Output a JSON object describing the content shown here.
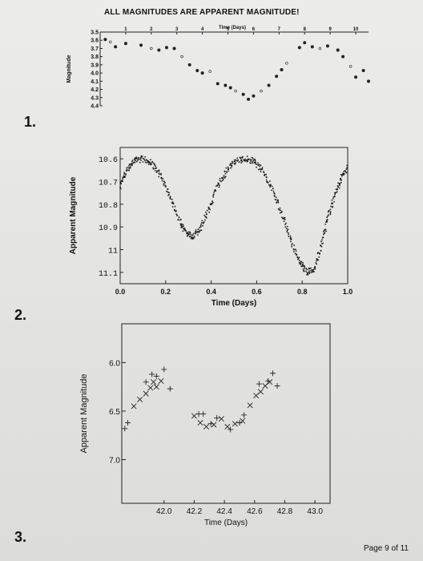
{
  "page": {
    "header": "ALL MAGNITUDES ARE APPARENT MAGNITUDE!",
    "question_numbers": [
      "1.",
      "2.",
      "3."
    ],
    "footer": "Page 9 of 11"
  },
  "chart_data": [
    {
      "type": "scatter",
      "title": "",
      "xlabel": "Time (Days)",
      "ylabel": "Magnitude",
      "x_ticks": [
        "1",
        "2",
        "3",
        "4",
        "5",
        "6",
        "7",
        "8",
        "9",
        "10"
      ],
      "y_ticks": [
        "3.5",
        "3.6",
        "3.7",
        "3.8",
        "3.9",
        "4.0",
        "4.1",
        "4.2",
        "4.3",
        "4.4"
      ],
      "xlim": [
        0,
        10.5
      ],
      "ylim": [
        3.5,
        4.4
      ],
      "y_inverted": true,
      "x_axis_position": "top",
      "points": [
        {
          "x": 0.2,
          "y": 3.59
        },
        {
          "x": 0.4,
          "y": 3.62
        },
        {
          "x": 0.6,
          "y": 3.68
        },
        {
          "x": 1.0,
          "y": 3.64
        },
        {
          "x": 1.6,
          "y": 3.66
        },
        {
          "x": 2.0,
          "y": 3.7
        },
        {
          "x": 2.3,
          "y": 3.72
        },
        {
          "x": 2.6,
          "y": 3.69
        },
        {
          "x": 2.9,
          "y": 3.7
        },
        {
          "x": 3.2,
          "y": 3.8
        },
        {
          "x": 3.5,
          "y": 3.9
        },
        {
          "x": 3.8,
          "y": 3.97
        },
        {
          "x": 4.0,
          "y": 4.0
        },
        {
          "x": 4.3,
          "y": 3.98
        },
        {
          "x": 4.6,
          "y": 4.13
        },
        {
          "x": 4.9,
          "y": 4.15
        },
        {
          "x": 5.1,
          "y": 4.18
        },
        {
          "x": 5.3,
          "y": 4.22
        },
        {
          "x": 5.6,
          "y": 4.26
        },
        {
          "x": 5.8,
          "y": 4.32
        },
        {
          "x": 6.0,
          "y": 4.28
        },
        {
          "x": 6.3,
          "y": 4.22
        },
        {
          "x": 6.6,
          "y": 4.15
        },
        {
          "x": 6.9,
          "y": 4.04
        },
        {
          "x": 7.1,
          "y": 3.96
        },
        {
          "x": 7.3,
          "y": 3.88
        },
        {
          "x": 7.8,
          "y": 3.69
        },
        {
          "x": 8.0,
          "y": 3.63
        },
        {
          "x": 8.3,
          "y": 3.68
        },
        {
          "x": 8.6,
          "y": 3.7
        },
        {
          "x": 8.9,
          "y": 3.67
        },
        {
          "x": 9.3,
          "y": 3.72
        },
        {
          "x": 9.5,
          "y": 3.8
        },
        {
          "x": 9.8,
          "y": 3.92
        },
        {
          "x": 10.0,
          "y": 4.05
        },
        {
          "x": 10.3,
          "y": 3.97
        },
        {
          "x": 10.5,
          "y": 4.1
        }
      ]
    },
    {
      "type": "scatter",
      "title": "",
      "xlabel": "Time (Days)",
      "ylabel": "Apparent Magnitude",
      "x_ticks": [
        "0.0",
        "0.2",
        "0.4",
        "0.6",
        "0.8",
        "1.0"
      ],
      "y_ticks": [
        "10.6",
        "10.7",
        "10.8",
        "10.9",
        "11",
        "11.1"
      ],
      "xlim": [
        0.0,
        1.0
      ],
      "ylim": [
        10.55,
        11.15
      ],
      "y_inverted": true,
      "density": "dense",
      "curve_points": [
        {
          "x": 0.0,
          "y": 10.72
        },
        {
          "x": 0.03,
          "y": 10.65
        },
        {
          "x": 0.06,
          "y": 10.61
        },
        {
          "x": 0.1,
          "y": 10.6
        },
        {
          "x": 0.14,
          "y": 10.62
        },
        {
          "x": 0.18,
          "y": 10.68
        },
        {
          "x": 0.22,
          "y": 10.77
        },
        {
          "x": 0.26,
          "y": 10.87
        },
        {
          "x": 0.29,
          "y": 10.93
        },
        {
          "x": 0.32,
          "y": 10.94
        },
        {
          "x": 0.35,
          "y": 10.91
        },
        {
          "x": 0.39,
          "y": 10.82
        },
        {
          "x": 0.43,
          "y": 10.72
        },
        {
          "x": 0.47,
          "y": 10.65
        },
        {
          "x": 0.51,
          "y": 10.61
        },
        {
          "x": 0.55,
          "y": 10.6
        },
        {
          "x": 0.59,
          "y": 10.61
        },
        {
          "x": 0.63,
          "y": 10.66
        },
        {
          "x": 0.67,
          "y": 10.74
        },
        {
          "x": 0.71,
          "y": 10.84
        },
        {
          "x": 0.75,
          "y": 10.96
        },
        {
          "x": 0.79,
          "y": 11.05
        },
        {
          "x": 0.82,
          "y": 11.1
        },
        {
          "x": 0.85,
          "y": 11.09
        },
        {
          "x": 0.88,
          "y": 11.0
        },
        {
          "x": 0.91,
          "y": 10.87
        },
        {
          "x": 0.94,
          "y": 10.77
        },
        {
          "x": 0.97,
          "y": 10.69
        },
        {
          "x": 1.0,
          "y": 10.64
        }
      ]
    },
    {
      "type": "scatter",
      "title": "",
      "xlabel": "Time (Days)",
      "ylabel": "Apparent Magnitude",
      "x_ticks": [
        "42.0",
        "42.2",
        "42.4",
        "42.6",
        "42.8",
        "43.0"
      ],
      "y_ticks": [
        "6.0",
        "6.5",
        "7.0"
      ],
      "xlim": [
        41.72,
        43.1
      ],
      "ylim": [
        5.6,
        7.45
      ],
      "y_inverted": true,
      "markers": [
        "x",
        "+"
      ],
      "points_x": [
        {
          "x": 41.8,
          "y": 6.45
        },
        {
          "x": 41.84,
          "y": 6.38
        },
        {
          "x": 41.88,
          "y": 6.32
        },
        {
          "x": 41.91,
          "y": 6.26
        },
        {
          "x": 41.93,
          "y": 6.2
        },
        {
          "x": 41.95,
          "y": 6.25
        },
        {
          "x": 41.98,
          "y": 6.19
        },
        {
          "x": 42.2,
          "y": 6.55
        },
        {
          "x": 42.24,
          "y": 6.62
        },
        {
          "x": 42.28,
          "y": 6.66
        },
        {
          "x": 42.33,
          "y": 6.64
        },
        {
          "x": 42.38,
          "y": 6.58
        },
        {
          "x": 42.42,
          "y": 6.66
        },
        {
          "x": 42.47,
          "y": 6.63
        },
        {
          "x": 42.52,
          "y": 6.6
        },
        {
          "x": 42.57,
          "y": 6.44
        },
        {
          "x": 42.61,
          "y": 6.34
        },
        {
          "x": 42.64,
          "y": 6.3
        },
        {
          "x": 42.67,
          "y": 6.24
        },
        {
          "x": 42.7,
          "y": 6.2
        }
      ],
      "points_plus": [
        {
          "x": 41.74,
          "y": 6.68
        },
        {
          "x": 41.76,
          "y": 6.62
        },
        {
          "x": 41.88,
          "y": 6.2
        },
        {
          "x": 41.92,
          "y": 6.12
        },
        {
          "x": 41.95,
          "y": 6.14
        },
        {
          "x": 42.0,
          "y": 6.07
        },
        {
          "x": 42.04,
          "y": 6.27
        },
        {
          "x": 42.23,
          "y": 6.53
        },
        {
          "x": 42.26,
          "y": 6.53
        },
        {
          "x": 42.31,
          "y": 6.63
        },
        {
          "x": 42.35,
          "y": 6.57
        },
        {
          "x": 42.44,
          "y": 6.69
        },
        {
          "x": 42.5,
          "y": 6.62
        },
        {
          "x": 42.53,
          "y": 6.54
        },
        {
          "x": 42.63,
          "y": 6.22
        },
        {
          "x": 42.69,
          "y": 6.19
        },
        {
          "x": 42.72,
          "y": 6.11
        },
        {
          "x": 42.75,
          "y": 6.24
        }
      ]
    }
  ]
}
